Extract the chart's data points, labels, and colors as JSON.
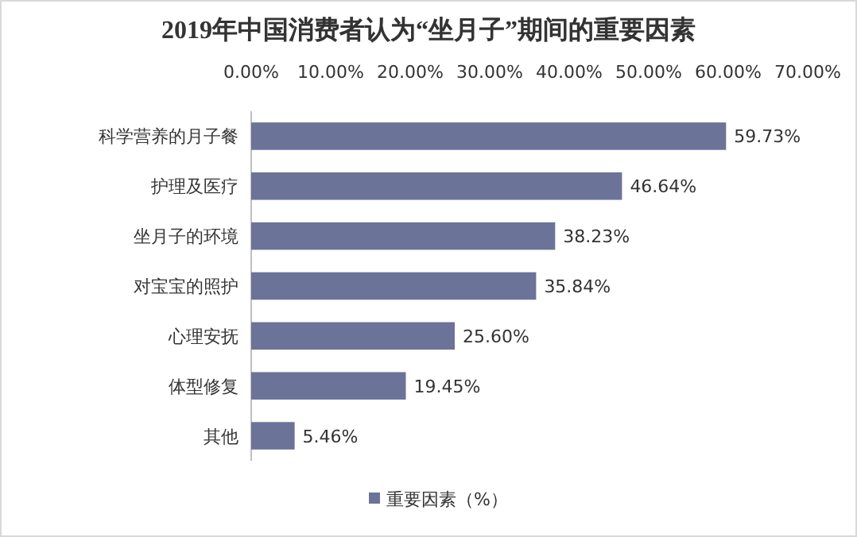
{
  "chart_data": {
    "type": "bar",
    "orientation": "horizontal",
    "title": "2019年中国消费者认为“坐月子”期间的重要因素",
    "categories": [
      "科学营养的月子餐",
      "护理及医疗",
      "坐月子的环境",
      "对宝宝的照护",
      "心理安抚",
      "体型修复",
      "其他"
    ],
    "series": [
      {
        "name": "重要因素（%）",
        "color": "#6b7399",
        "values": [
          59.73,
          46.64,
          38.23,
          35.84,
          25.6,
          19.45,
          5.46
        ],
        "value_labels": [
          "59.73%",
          "46.64%",
          "38.23%",
          "35.84%",
          "25.60%",
          "19.45%",
          "5.46%"
        ]
      }
    ],
    "xlim": [
      0,
      70
    ],
    "xticks": [
      {
        "value": 0,
        "label": "0.00%"
      },
      {
        "value": 10,
        "label": "10.00%"
      },
      {
        "value": 20,
        "label": "20.00%"
      },
      {
        "value": 30,
        "label": "30.00%"
      },
      {
        "value": 40,
        "label": "40.00%"
      },
      {
        "value": 50,
        "label": "50.00%"
      },
      {
        "value": 60,
        "label": "60.00%"
      },
      {
        "value": 70,
        "label": "70.00%"
      }
    ],
    "legend": "bottom"
  }
}
